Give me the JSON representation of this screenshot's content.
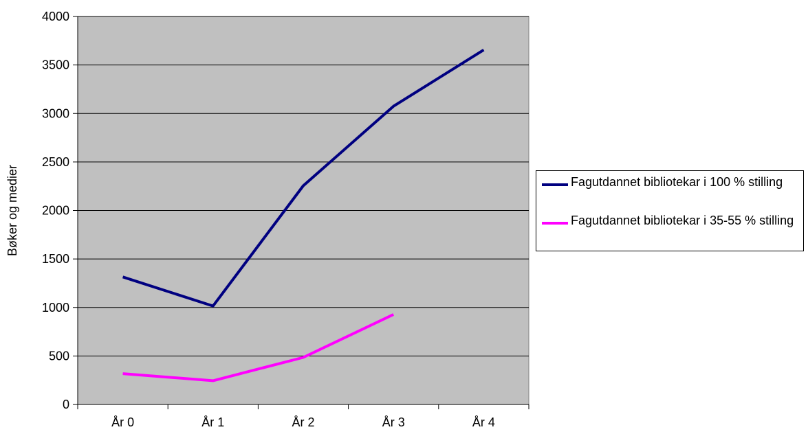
{
  "chart_data": {
    "type": "line",
    "title": "",
    "xlabel": "",
    "ylabel": "Bøker og medier",
    "categories": [
      "År 0",
      "År 1",
      "År 2",
      "År 3",
      "År 4"
    ],
    "ylim": [
      0,
      4000
    ],
    "yticks": [
      0,
      500,
      1000,
      1500,
      2000,
      2500,
      3000,
      3500,
      4000
    ],
    "grid": true,
    "plot_background": "#c0c0c0",
    "legend_position": "right",
    "series": [
      {
        "name": "Fagutdannet bibliotekar i 100 % stilling",
        "color": "#000080",
        "values": [
          1315,
          1015,
          2255,
          3075,
          3655
        ]
      },
      {
        "name": "Fagutdannet bibliotekar i 35-55 % stilling",
        "color": "#ff00ff",
        "values": [
          318,
          245,
          485,
          928,
          null
        ]
      }
    ]
  }
}
